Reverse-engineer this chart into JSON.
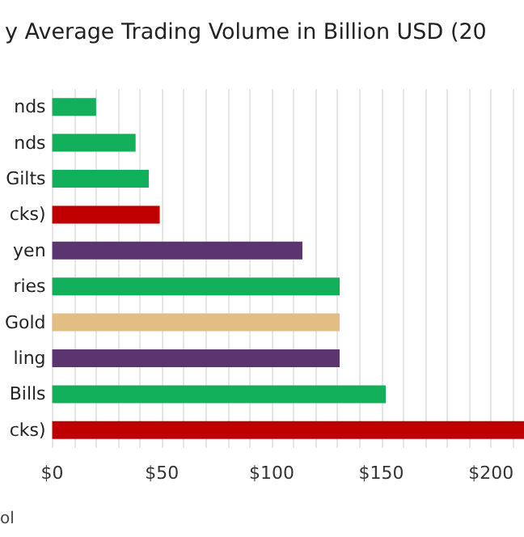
{
  "chart_data": {
    "type": "bar",
    "orientation": "horizontal",
    "title": "y Average Trading Volume in Billion USD (20",
    "categories": [
      "nds",
      "nds",
      "Gilts",
      "cks)",
      "yen",
      "ries",
      "Gold",
      "ling",
      "Bills",
      "cks)"
    ],
    "values": [
      20,
      38,
      44,
      49,
      114,
      131,
      131,
      131,
      152,
      215
    ],
    "colors": [
      "#12b05a",
      "#12b05a",
      "#12b05a",
      "#c00000",
      "#5b3470",
      "#12b05a",
      "#e2bd84",
      "#5b3470",
      "#12b05a",
      "#c00000"
    ],
    "xlim": [
      0,
      215
    ],
    "xticks": [
      {
        "value": 0,
        "label": "$0"
      },
      {
        "value": 10,
        "label": null
      },
      {
        "value": 20,
        "label": null
      },
      {
        "value": 30,
        "label": null
      },
      {
        "value": 40,
        "label": null
      },
      {
        "value": 50,
        "label": "$50"
      },
      {
        "value": 60,
        "label": null
      },
      {
        "value": 70,
        "label": null
      },
      {
        "value": 80,
        "label": null
      },
      {
        "value": 90,
        "label": null
      },
      {
        "value": 100,
        "label": "$100"
      },
      {
        "value": 110,
        "label": null
      },
      {
        "value": 120,
        "label": null
      },
      {
        "value": 130,
        "label": null
      },
      {
        "value": 140,
        "label": null
      },
      {
        "value": 150,
        "label": "$150"
      },
      {
        "value": 160,
        "label": null
      },
      {
        "value": 170,
        "label": null
      },
      {
        "value": 180,
        "label": null
      },
      {
        "value": 190,
        "label": null
      },
      {
        "value": 200,
        "label": "$200"
      },
      {
        "value": 210,
        "label": null
      }
    ],
    "grid": "x",
    "annotations": [
      "ol"
    ]
  }
}
